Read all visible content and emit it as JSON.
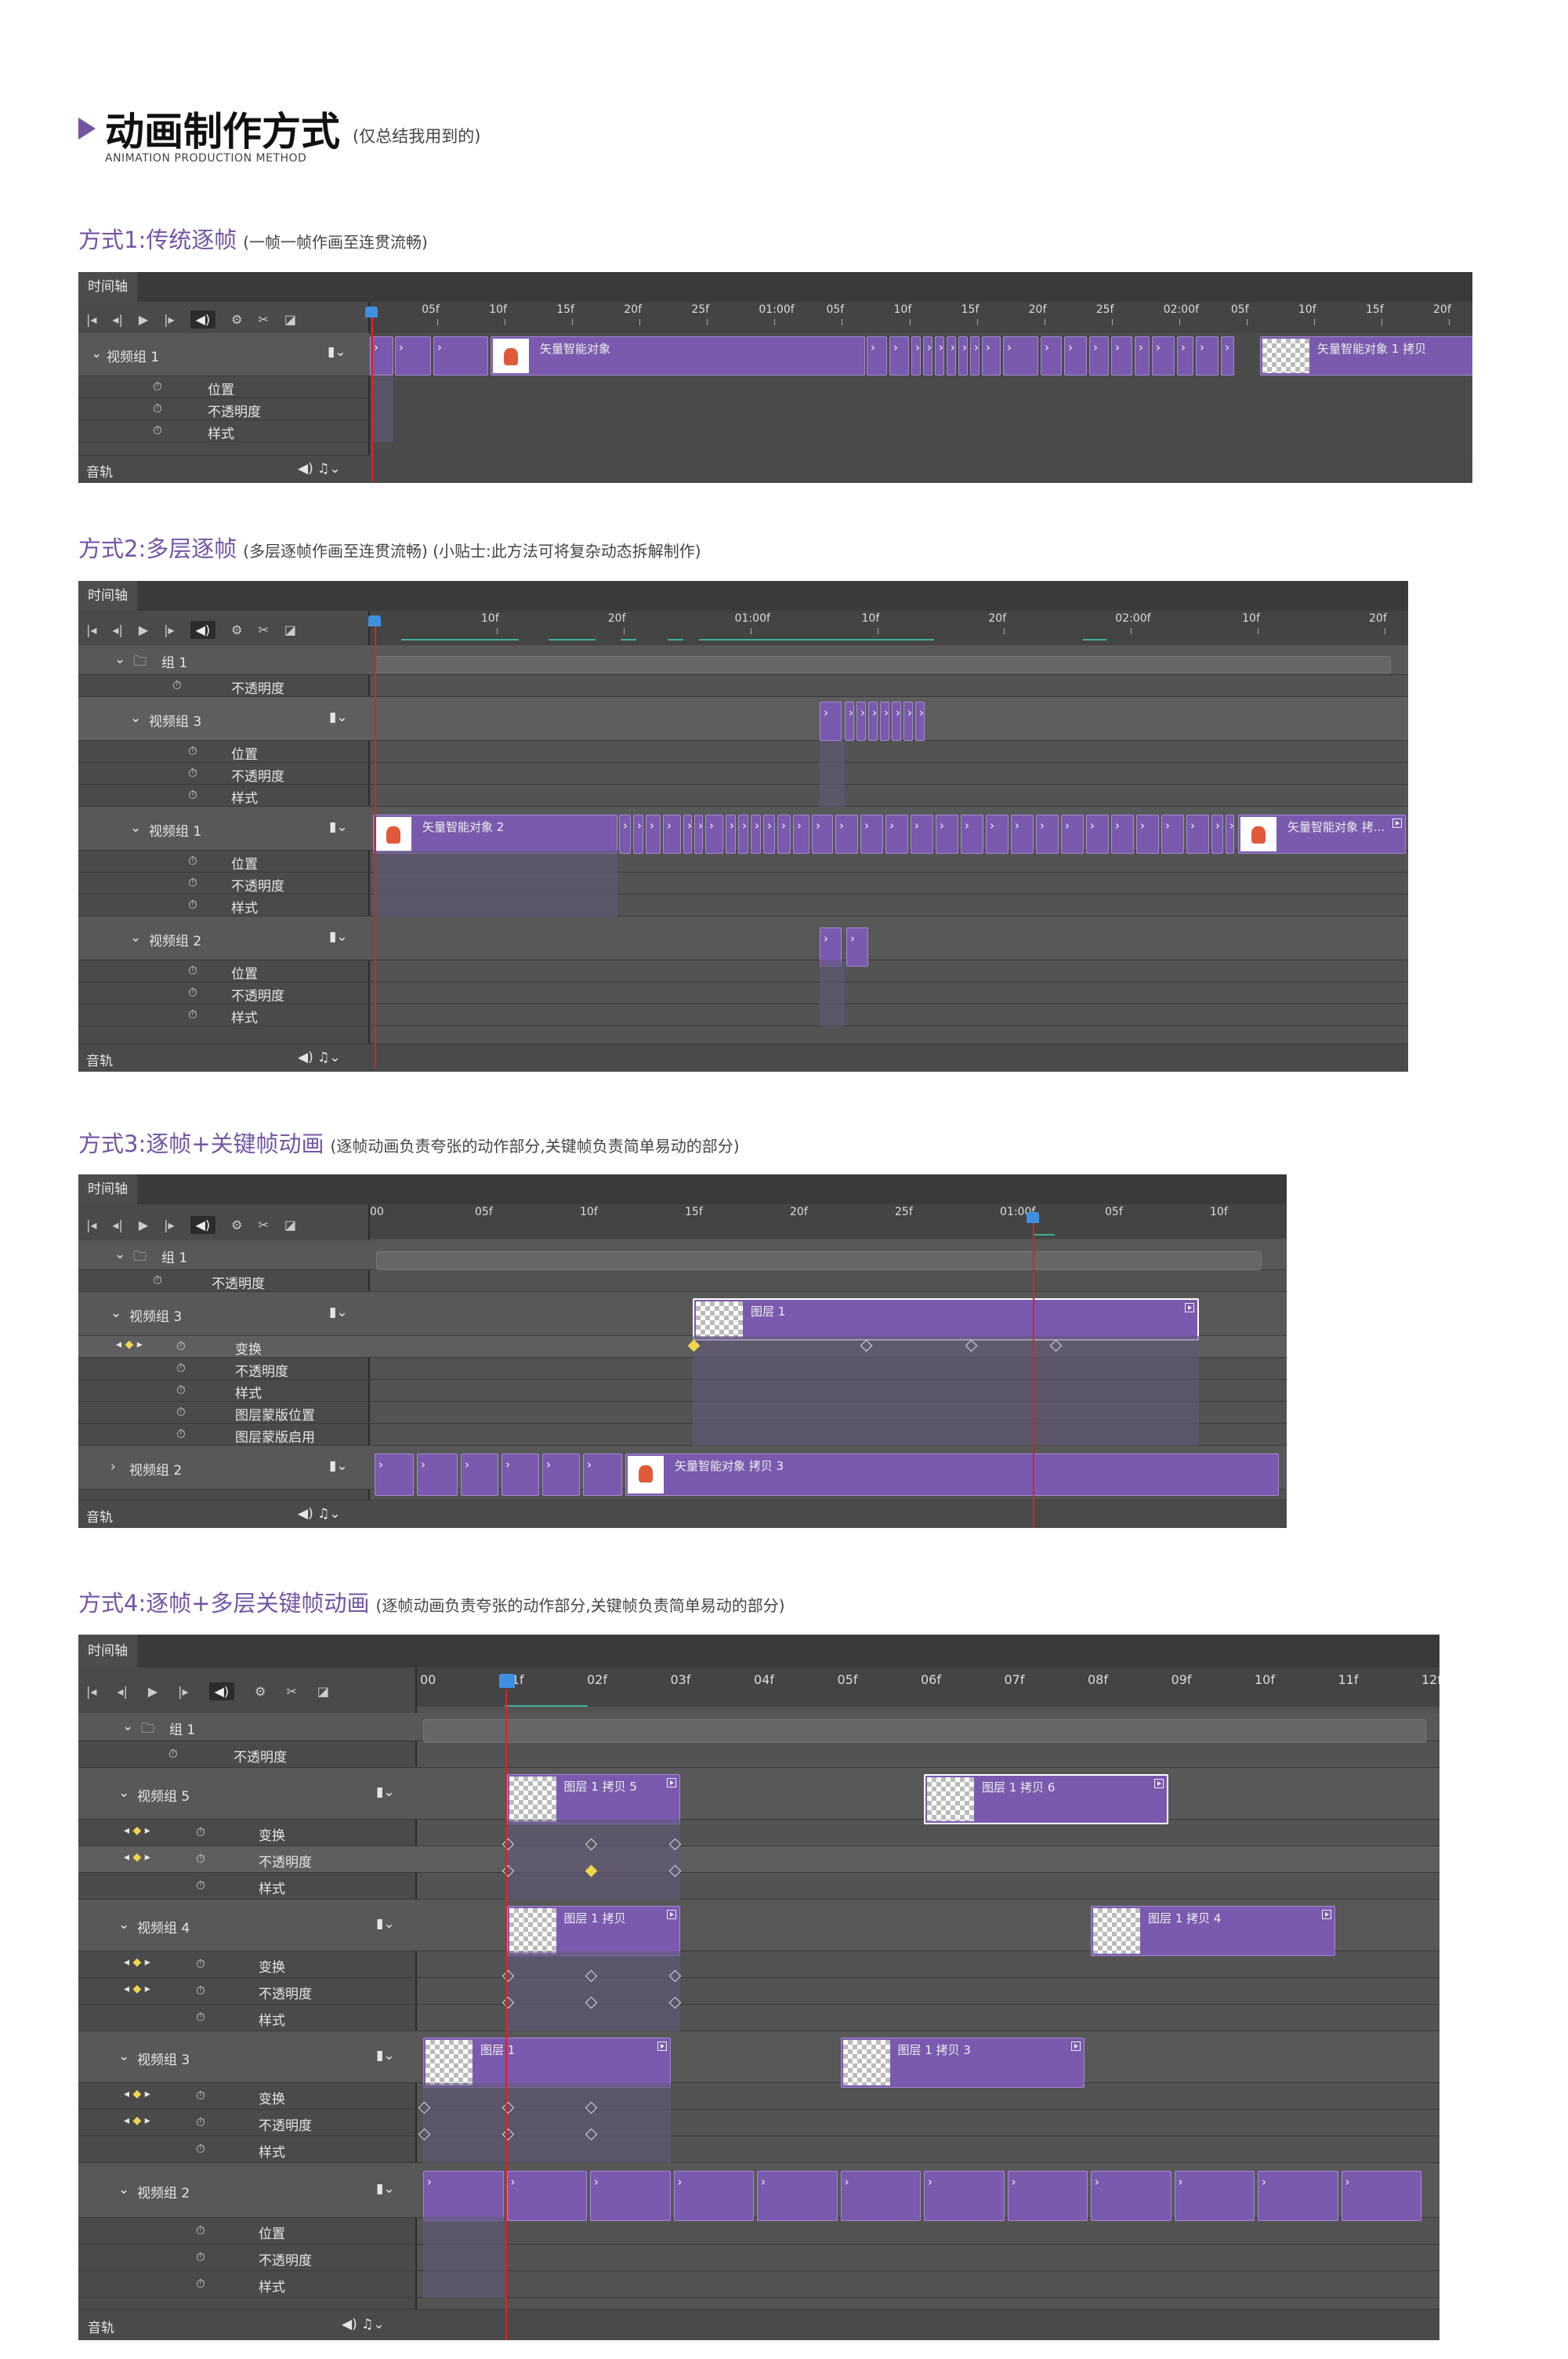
{
  "header": {
    "title": "动画制作方式",
    "note": "(仅总结我用到的)",
    "subtitle": "ANIMATION PRODUCTION METHOD"
  },
  "panel_tab": "时间轴",
  "audio_label": "音轨",
  "sections": [
    {
      "title": "方式1:传统逐帧",
      "note": "(一帧一帧作画至连贯流畅)",
      "ticks": [
        "05f",
        "10f",
        "15f",
        "20f",
        "25f",
        "01:00f",
        "05f",
        "10f",
        "15f",
        "20f",
        "25f",
        "02:00f",
        "05f",
        "10f",
        "15f",
        "20f"
      ],
      "rows": [
        {
          "name": "视频组 1"
        },
        {
          "name": "位置"
        },
        {
          "name": "不透明度"
        },
        {
          "name": "样式"
        }
      ],
      "clips": [
        "矢量智能对象",
        "矢量智能对象 1 拷贝"
      ]
    },
    {
      "title": "方式2:多层逐帧",
      "note": "(多层逐帧作画至连贯流畅) (小贴士:此方法可将复杂动态拆解制作)",
      "ticks": [
        "10f",
        "20f",
        "01:00f",
        "10f",
        "20f",
        "02:00f",
        "10f",
        "20f"
      ],
      "rows": [
        {
          "name": "组 1"
        },
        {
          "name": "不透明度"
        },
        {
          "name": "视频组 3"
        },
        {
          "name": "位置"
        },
        {
          "name": "不透明度"
        },
        {
          "name": "样式"
        },
        {
          "name": "视频组 1"
        },
        {
          "name": "位置"
        },
        {
          "name": "不透明度"
        },
        {
          "name": "样式"
        },
        {
          "name": "视频组 2"
        },
        {
          "name": "位置"
        },
        {
          "name": "不透明度"
        },
        {
          "name": "样式"
        }
      ],
      "clips": [
        "矢量智能对象 2",
        "矢量智能对象 拷..."
      ]
    },
    {
      "title": "方式3:逐帧+关键帧动画",
      "note": "(逐帧动画负责夸张的动作部分,关键帧负责简单易动的部分)",
      "ticks": [
        "00",
        "05f",
        "10f",
        "15f",
        "20f",
        "25f",
        "01:00f",
        "05f",
        "10f"
      ],
      "rows": [
        {
          "name": "组 1"
        },
        {
          "name": "不透明度"
        },
        {
          "name": "视频组 3"
        },
        {
          "name": "变换"
        },
        {
          "name": "不透明度"
        },
        {
          "name": "样式"
        },
        {
          "name": "图层蒙版位置"
        },
        {
          "name": "图层蒙版启用"
        },
        {
          "name": "视频组 2"
        }
      ],
      "clips": [
        "图层 1",
        "矢量智能对象 拷贝 3"
      ]
    },
    {
      "title": "方式4:逐帧+多层关键帧动画",
      "note": "(逐帧动画负责夸张的动作部分,关键帧负责简单易动的部分)",
      "ticks": [
        "00",
        "01f",
        "02f",
        "03f",
        "04f",
        "05f",
        "06f",
        "07f",
        "08f",
        "09f",
        "10f",
        "11f",
        "12f"
      ],
      "rows": [
        {
          "name": "组 1"
        },
        {
          "name": "不透明度"
        },
        {
          "name": "视频组 5"
        },
        {
          "name": "变换"
        },
        {
          "name": "不透明度"
        },
        {
          "name": "样式"
        },
        {
          "name": "视频组 4"
        },
        {
          "name": "变换"
        },
        {
          "name": "不透明度"
        },
        {
          "name": "样式"
        },
        {
          "name": "视频组 3"
        },
        {
          "name": "变换"
        },
        {
          "name": "不透明度"
        },
        {
          "name": "样式"
        },
        {
          "name": "视频组 2"
        },
        {
          "name": "位置"
        },
        {
          "name": "不透明度"
        },
        {
          "name": "样式"
        }
      ],
      "clips": [
        "图层 1 拷贝 5",
        "图层 1 拷贝 6",
        "图层 1 拷贝",
        "图层 1 拷贝 4",
        "图层 1",
        "图层 1 拷贝 3"
      ]
    }
  ],
  "colors": {
    "accent": "#7354a4",
    "clip": "#7a5aae",
    "playhead": "#e12020",
    "keyframe": "#f2d54d"
  }
}
